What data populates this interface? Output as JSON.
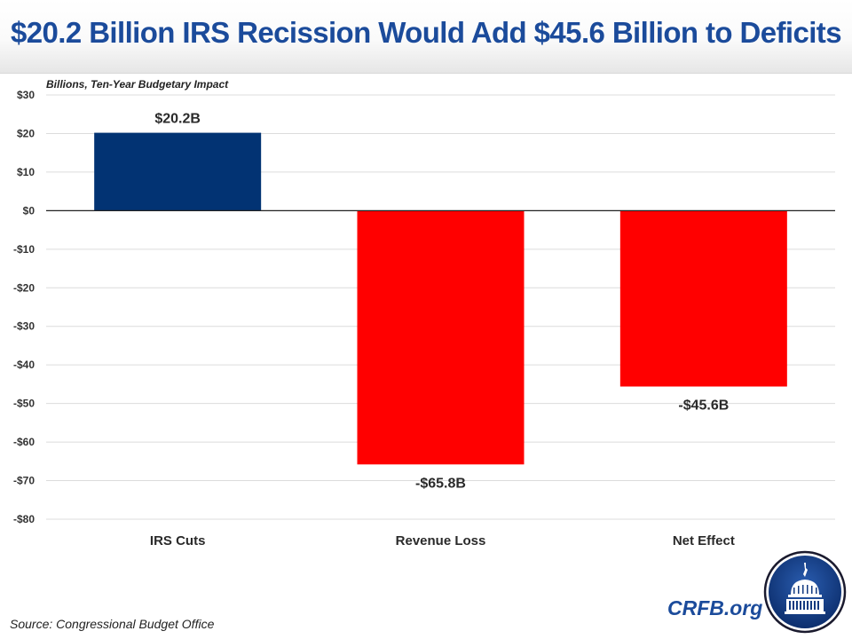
{
  "header": {
    "title": "$20.2 Billion IRS Recission Would Add $45.6 Billion to Deficits"
  },
  "chart_data": {
    "type": "bar",
    "title": "$20.2 Billion IRS Recission Would Add $45.6 Billion to Deficits",
    "subtitle": "Billions, Ten-Year Budgetary Impact",
    "xlabel": "",
    "ylabel": "Billions, Ten-Year Budgetary Impact",
    "categories": [
      "IRS Cuts",
      "Revenue Loss",
      "Net Effect"
    ],
    "values": [
      20.2,
      -65.8,
      -45.6
    ],
    "data_labels": [
      "$20.2B",
      "-$65.8B",
      "-$45.6B"
    ],
    "colors": [
      "#023373",
      "#ff0000",
      "#ff0000"
    ],
    "ylim": [
      -80,
      30
    ],
    "yticks": [
      30,
      20,
      10,
      0,
      -10,
      -20,
      -30,
      -40,
      -50,
      -60,
      -70,
      -80
    ],
    "ytick_labels": [
      "$30",
      "$20",
      "$10",
      "$0",
      "-$10",
      "-$20",
      "-$30",
      "-$40",
      "-$50",
      "-$60",
      "-$70",
      "-$80"
    ],
    "grid": true,
    "legend": "none"
  },
  "footer": {
    "source": "Source: Congressional Budget Office",
    "brand": "CRFB.org",
    "logo_icon": "capitol-dome-logo"
  }
}
